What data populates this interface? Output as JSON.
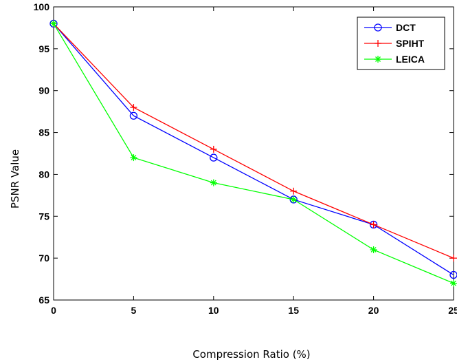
{
  "chart_data": {
    "type": "line",
    "title": "",
    "xlabel": "Compression Ratio (%)",
    "ylabel": "PSNR Value",
    "x": [
      0,
      5,
      10,
      15,
      20,
      25
    ],
    "xlim": [
      0,
      25
    ],
    "ylim": [
      65,
      100
    ],
    "xticks": [
      0,
      5,
      10,
      15,
      20,
      25
    ],
    "yticks": [
      65,
      70,
      75,
      80,
      85,
      90,
      95,
      100
    ],
    "grid": false,
    "legend_position": "top-right",
    "series": [
      {
        "name": "DCT",
        "values": [
          98,
          87,
          82,
          77,
          74,
          68
        ],
        "color": "#0000ff",
        "marker": "circle"
      },
      {
        "name": "SPIHT",
        "values": [
          98,
          88,
          83,
          78,
          74,
          70
        ],
        "color": "#ff0000",
        "marker": "plus"
      },
      {
        "name": "LEICA",
        "values": [
          98,
          82,
          79,
          77,
          71,
          67
        ],
        "color": "#00ff00",
        "marker": "star"
      }
    ]
  }
}
